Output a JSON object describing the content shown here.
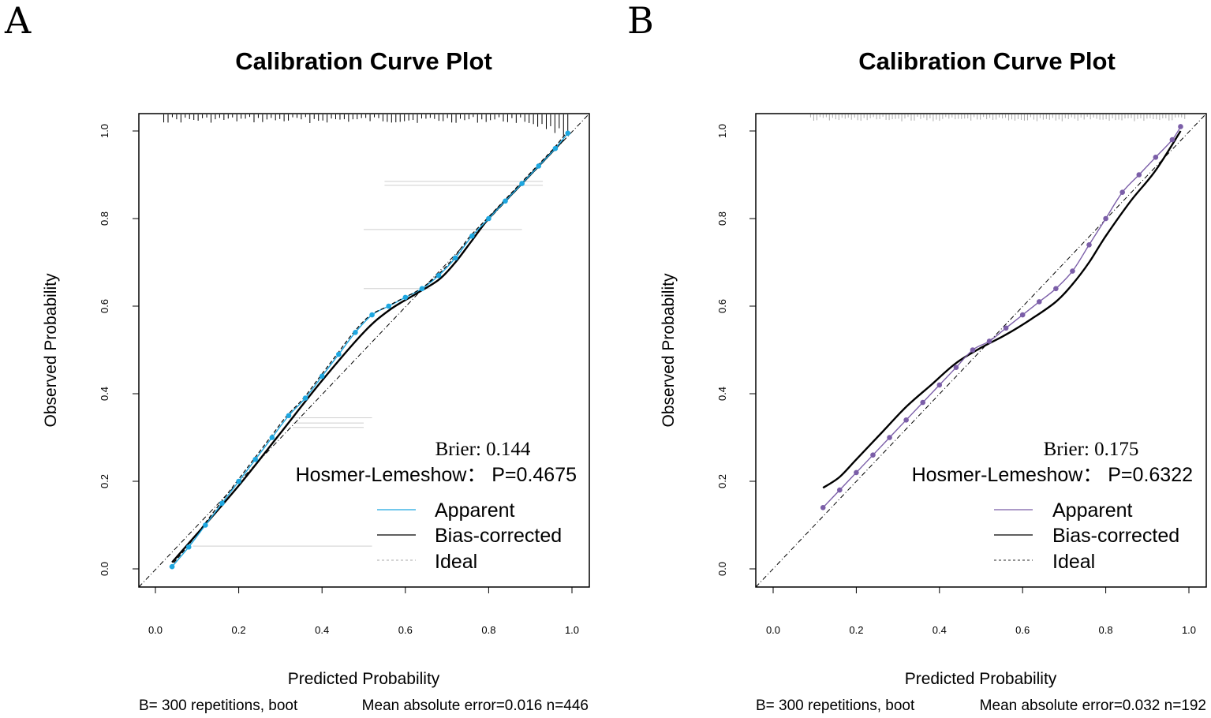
{
  "chart_data": [
    {
      "panel": "A",
      "type": "line",
      "title": "Calibration Curve Plot",
      "xlabel": "Predicted Probability",
      "ylabel": "Observed Probability",
      "xlim": [
        0,
        1
      ],
      "ylim": [
        0,
        1
      ],
      "xticks": [
        "0.0",
        "0.2",
        "0.4",
        "0.6",
        "0.8",
        "1.0"
      ],
      "yticks": [
        "0.0",
        "0.2",
        "0.4",
        "0.6",
        "0.8",
        "1.0"
      ],
      "apparent_color": "#1ea7e0",
      "series": [
        {
          "name": "Apparent",
          "x": [
            0.04,
            0.08,
            0.12,
            0.16,
            0.2,
            0.24,
            0.28,
            0.32,
            0.36,
            0.4,
            0.44,
            0.48,
            0.52,
            0.56,
            0.6,
            0.64,
            0.68,
            0.72,
            0.76,
            0.8,
            0.84,
            0.88,
            0.92,
            0.96,
            0.99
          ],
          "y": [
            0.005,
            0.05,
            0.1,
            0.15,
            0.2,
            0.25,
            0.3,
            0.35,
            0.39,
            0.44,
            0.49,
            0.54,
            0.58,
            0.6,
            0.62,
            0.64,
            0.67,
            0.71,
            0.76,
            0.8,
            0.84,
            0.88,
            0.92,
            0.96,
            0.995
          ]
        },
        {
          "name": "Bias-corrected",
          "x": [
            0.04,
            0.1,
            0.2,
            0.3,
            0.4,
            0.5,
            0.56,
            0.62,
            0.68,
            0.72,
            0.76,
            0.8,
            0.86,
            0.92,
            0.98
          ],
          "y": [
            0.015,
            0.08,
            0.19,
            0.31,
            0.43,
            0.54,
            0.59,
            0.625,
            0.66,
            0.7,
            0.75,
            0.8,
            0.86,
            0.92,
            0.98
          ]
        },
        {
          "name": "Ideal",
          "x": [
            0,
            1
          ],
          "y": [
            0,
            1
          ]
        }
      ],
      "brier_text": "Brier: 0.144",
      "hl_text": "Hosmer-Lemeshow： P=0.4675",
      "footer_left": "B= 300 repetitions, boot",
      "footer_right": "Mean absolute error=0.016 n=446"
    },
    {
      "panel": "B",
      "type": "line",
      "title": "Calibration Curve Plot",
      "xlabel": "Predicted Probability",
      "ylabel": "Observed Probability",
      "xlim": [
        0,
        1
      ],
      "ylim": [
        0,
        1
      ],
      "xticks": [
        "0.0",
        "0.2",
        "0.4",
        "0.6",
        "0.8",
        "1.0"
      ],
      "yticks": [
        "0.0",
        "0.2",
        "0.4",
        "0.6",
        "0.8",
        "1.0"
      ],
      "apparent_color": "#7b5ea8",
      "series": [
        {
          "name": "Apparent",
          "x": [
            0.12,
            0.16,
            0.2,
            0.24,
            0.28,
            0.32,
            0.36,
            0.4,
            0.44,
            0.48,
            0.52,
            0.56,
            0.6,
            0.64,
            0.68,
            0.72,
            0.76,
            0.8,
            0.84,
            0.88,
            0.92,
            0.96,
            0.98
          ],
          "y": [
            0.14,
            0.18,
            0.22,
            0.26,
            0.3,
            0.34,
            0.38,
            0.42,
            0.46,
            0.5,
            0.52,
            0.55,
            0.58,
            0.61,
            0.64,
            0.68,
            0.74,
            0.8,
            0.86,
            0.9,
            0.94,
            0.98,
            1.01
          ]
        },
        {
          "name": "Bias-corrected",
          "x": [
            0.12,
            0.16,
            0.2,
            0.26,
            0.32,
            0.38,
            0.44,
            0.5,
            0.56,
            0.62,
            0.68,
            0.72,
            0.76,
            0.8,
            0.86,
            0.92,
            0.98
          ],
          "y": [
            0.185,
            0.21,
            0.25,
            0.31,
            0.37,
            0.42,
            0.47,
            0.505,
            0.535,
            0.57,
            0.61,
            0.65,
            0.7,
            0.76,
            0.84,
            0.91,
            1.0
          ]
        },
        {
          "name": "Ideal",
          "x": [
            0,
            1
          ],
          "y": [
            0,
            1
          ]
        }
      ],
      "brier_text": "Brier: 0.175",
      "hl_text": "Hosmer-Lemeshow： P=0.6322",
      "footer_left": "B= 300 repetitions, boot",
      "footer_right": "Mean absolute error=0.032 n=192"
    }
  ]
}
